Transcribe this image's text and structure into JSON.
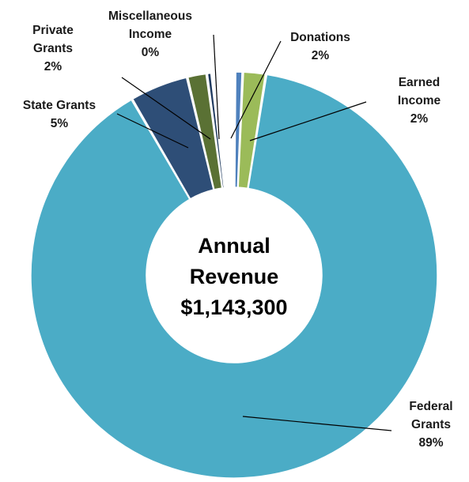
{
  "chart_data": {
    "type": "pie",
    "title": "",
    "slices": [
      {
        "name": "Donations",
        "value": 2,
        "label_lines": [
          "Donations",
          "2%"
        ],
        "color": "#4f81bd"
      },
      {
        "name": "Earned Income",
        "value": 2,
        "label_lines": [
          "Earned",
          "Income",
          "2%"
        ],
        "color": "#9bbb59"
      },
      {
        "name": "Federal Grants",
        "value": 89,
        "label_lines": [
          "Federal",
          "Grants",
          "89%"
        ],
        "color": "#4bacc6"
      },
      {
        "name": "State Grants",
        "value": 5,
        "label_lines": [
          "State Grants",
          "5%"
        ],
        "color": "#2e4e77"
      },
      {
        "name": "Private Grants",
        "value": 2,
        "label_lines": [
          "Private",
          "Grants",
          "2%"
        ],
        "color": "#5a7134"
      },
      {
        "name": "Miscellaneous Income",
        "value": 0,
        "label_lines": [
          "Miscellaneous",
          "Income",
          "0%"
        ],
        "color": "#1f3a5f"
      }
    ],
    "center_label": [
      "Annual",
      "Revenue",
      "$1,143,300"
    ]
  }
}
